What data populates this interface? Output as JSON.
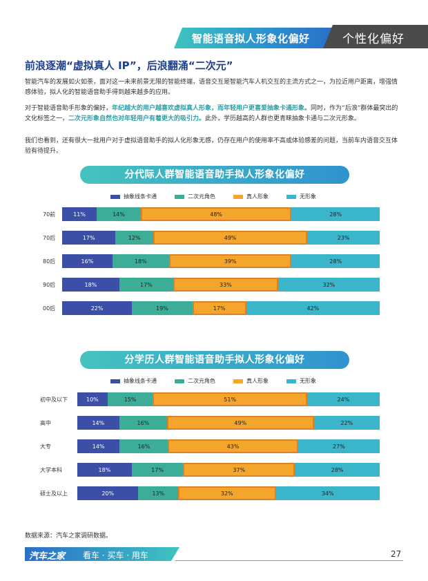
{
  "header": {
    "section_title": "智能语音拟人形象化偏好",
    "category": "个性化偏好"
  },
  "article": {
    "title": "前浪逐潮“虚拟真人 IP”，后浪翻涌“二次元”",
    "p1": "智能汽车的发展如火如荼，面对这一未来前景无限的智能终端，语音交互是智能汽车人机交互的主流方式之一，为拉近用户距离，增强情感体验，拟人化的智能语音助手得到越来越多的应用。",
    "p2_a": "对于智能语音助手形象的偏好，",
    "p2_b": "年纪越大的用户越喜欢虚拟真人形象，而年轻用户更喜爱抽象卡通形象。",
    "p2_c": "同时，作为“后浪”群体最突出的文化标签之一，",
    "p2_d": "二次元形象自然也对年轻用户有着更大的吸引力。",
    "p2_e": "此外，学历越高的人群也更青睐抽象卡通与二次元形象。",
    "p3": "我们也看到，还有很大一批用户对于虚拟语音助手的拟人化形象无感，仍存在用户的使用率不高或体验感差的问题，当前车内语音交互体验有待提升。"
  },
  "chart_data": [
    {
      "type": "bar",
      "stacked": true,
      "orientation": "horizontal",
      "title": "分代际人群智能语音助手拟人形象化偏好",
      "legend": [
        "抽象线条卡通",
        "二次元角色",
        "真人形象",
        "无形象"
      ],
      "categories": [
        "70前",
        "70后",
        "80后",
        "90后",
        "00后"
      ],
      "series": [
        {
          "name": "抽象线条卡通",
          "values": [
            11,
            17,
            16,
            18,
            22
          ]
        },
        {
          "name": "二次元角色",
          "values": [
            14,
            12,
            18,
            17,
            19
          ]
        },
        {
          "name": "真人形象",
          "values": [
            48,
            49,
            39,
            33,
            17
          ]
        },
        {
          "name": "无形象",
          "values": [
            28,
            23,
            28,
            32,
            42
          ]
        }
      ]
    },
    {
      "type": "bar",
      "stacked": true,
      "orientation": "horizontal",
      "title": "分学历人群智能语音助手拟人形象化偏好",
      "legend": [
        "抽象线条卡通",
        "二次元角色",
        "真人形象",
        "无形象"
      ],
      "categories": [
        "初中及以下",
        "高中",
        "大专",
        "大学本科",
        "硕士及以上"
      ],
      "series": [
        {
          "name": "抽象线条卡通",
          "values": [
            10,
            14,
            14,
            18,
            20
          ]
        },
        {
          "name": "二次元角色",
          "values": [
            15,
            16,
            16,
            17,
            13
          ]
        },
        {
          "name": "真人形象",
          "values": [
            51,
            49,
            43,
            37,
            32
          ]
        },
        {
          "name": "无形象",
          "values": [
            24,
            22,
            27,
            28,
            34
          ]
        }
      ]
    }
  ],
  "colors": {
    "abstract": "#3b4fa6",
    "anime": "#3cae98",
    "real": "#f4a52b",
    "none": "#3ab5c9"
  },
  "source": "数据来源：汽车之家调研数据。",
  "footer": {
    "brand": "汽车之家",
    "tagline": "看车 · 买车 · 用车",
    "page": "27"
  }
}
